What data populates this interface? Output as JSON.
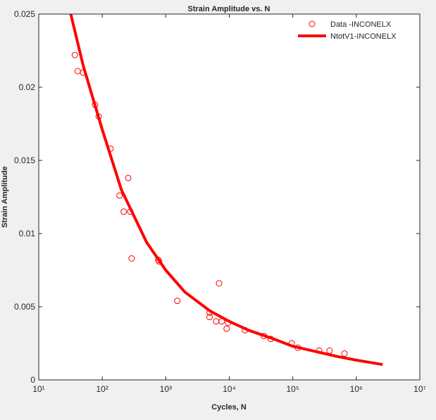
{
  "chart_data": {
    "type": "scatter-line",
    "title": "Strain Amplitude vs. N",
    "xlabel": "Cycles, N",
    "ylabel": "Strain Amplitude",
    "xscale": "log",
    "xlim": [
      10,
      10000000
    ],
    "xticks": [
      {
        "value": 10,
        "label": "10¹"
      },
      {
        "value": 100,
        "label": "10²"
      },
      {
        "value": 1000,
        "label": "10³"
      },
      {
        "value": 10000,
        "label": "10⁴"
      },
      {
        "value": 100000,
        "label": "10⁵"
      },
      {
        "value": 1000000,
        "label": "10⁶"
      },
      {
        "value": 10000000,
        "label": "10⁷"
      }
    ],
    "ylim": [
      0,
      0.025
    ],
    "yticks": [
      0,
      0.005,
      0.01,
      0.015,
      0.02,
      0.025
    ],
    "legend": "northeast",
    "series": [
      {
        "name": "Data -INCONELX",
        "color": "#ff0000",
        "kind": "marker",
        "x": [
          37,
          41,
          50,
          77,
          88,
          135,
          187,
          218,
          256,
          276,
          290,
          763,
          784,
          1520,
          4900,
          4900,
          6200,
          6900,
          7600,
          9100,
          9600,
          17700,
          35000,
          45000,
          96000,
          120000,
          260000,
          380000,
          650000
        ],
        "values": [
          0.0222,
          0.0211,
          0.021,
          0.0188,
          0.018,
          0.0158,
          0.0126,
          0.0115,
          0.0138,
          0.0115,
          0.0083,
          0.0082,
          0.0081,
          0.0054,
          0.0046,
          0.0043,
          0.004,
          0.0066,
          0.004,
          0.0035,
          0.0039,
          0.0034,
          0.003,
          0.0028,
          0.0025,
          0.0022,
          0.002,
          0.002,
          0.0018
        ]
      },
      {
        "name": "NtotV1-INCONELX",
        "color": "#ff0000",
        "kind": "line",
        "x": [
          32,
          50,
          100,
          200,
          500,
          1000,
          2000,
          5000,
          10000,
          20000,
          50000,
          100000,
          200000,
          500000,
          1000000,
          2600000
        ],
        "values": [
          0.025,
          0.0215,
          0.0171,
          0.013,
          0.0094,
          0.0075,
          0.006,
          0.0047,
          0.004,
          0.0034,
          0.0028,
          0.0023,
          0.002,
          0.0016,
          0.00135,
          0.00105
        ]
      }
    ]
  }
}
